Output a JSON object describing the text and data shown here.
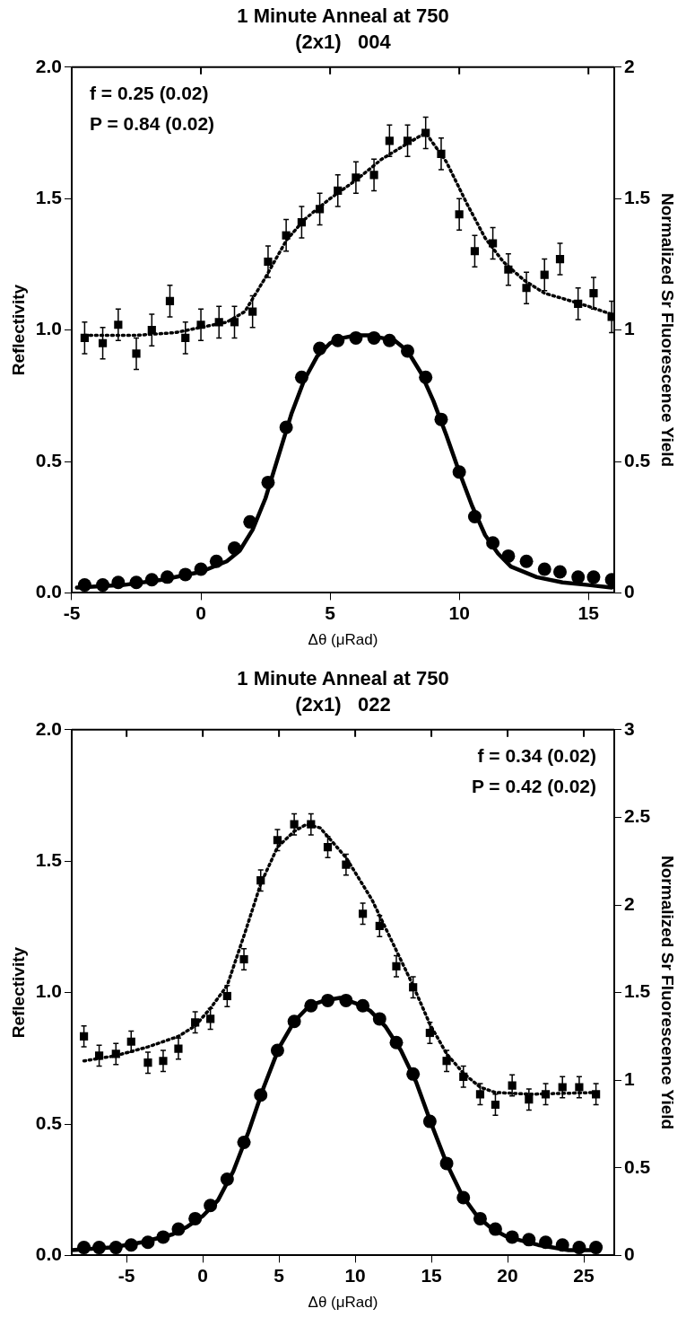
{
  "chart_data": [
    {
      "type": "scatter",
      "title": "1 Minute Anneal at 750",
      "subtitle": "(2x1)   004",
      "xlabel": "Δθ (μRad)",
      "ylabel": "Reflectivity",
      "y2label": "Normalized Sr Fluorescence Yield",
      "annotations": [
        "f = 0.25 (0.02)",
        "P = 0.84 (0.02)"
      ],
      "xlim": [
        -5,
        16
      ],
      "xticks": [
        -5,
        0,
        5,
        10,
        15
      ],
      "ylim": [
        0,
        2
      ],
      "yticks": [
        {
          "value": 0,
          "label": "0.0"
        },
        {
          "value": 0.5,
          "label": "0.5"
        },
        {
          "value": 1,
          "label": "1.0"
        },
        {
          "value": 1.5,
          "label": "1.5"
        },
        {
          "value": 2,
          "label": "2.0"
        }
      ],
      "y2lim": [
        0,
        2
      ],
      "y2ticks": [
        0,
        0.5,
        1,
        1.5,
        2
      ],
      "grid": false,
      "legend": false,
      "series": [
        {
          "marker": "circle",
          "color": "#000000",
          "x": [
            -4.5,
            -3.8,
            -3.2,
            -2.5,
            -1.9,
            -1.3,
            -0.6,
            0,
            0.6,
            1.3,
            1.9,
            2.6,
            3.3,
            3.9,
            4.6,
            5.3,
            6.0,
            6.7,
            7.3,
            8.0,
            8.7,
            9.3,
            10.0,
            10.6,
            11.3,
            11.9,
            12.6,
            13.3,
            13.9,
            14.6,
            15.2,
            15.9
          ],
          "values": [
            0.03,
            0.03,
            0.04,
            0.04,
            0.05,
            0.06,
            0.07,
            0.09,
            0.12,
            0.17,
            0.27,
            0.42,
            0.63,
            0.82,
            0.93,
            0.96,
            0.97,
            0.97,
            0.96,
            0.92,
            0.82,
            0.66,
            0.46,
            0.29,
            0.19,
            0.14,
            0.12,
            0.09,
            0.08,
            0.06,
            0.06,
            0.05
          ]
        },
        {
          "type": "line",
          "line_style": "solid",
          "color": "#000000",
          "x": [
            -4.8,
            -3,
            -1.5,
            0,
            1,
            1.5,
            2,
            2.5,
            3,
            3.5,
            4,
            4.5,
            5,
            5.5,
            6,
            6.5,
            7,
            7.5,
            8,
            8.5,
            9,
            9.5,
            10,
            10.5,
            11,
            11.5,
            12,
            13,
            14,
            15,
            15.9
          ],
          "values": [
            0.02,
            0.03,
            0.05,
            0.08,
            0.12,
            0.16,
            0.24,
            0.36,
            0.52,
            0.68,
            0.81,
            0.9,
            0.95,
            0.97,
            0.98,
            0.98,
            0.97,
            0.96,
            0.92,
            0.84,
            0.73,
            0.6,
            0.46,
            0.33,
            0.22,
            0.15,
            0.1,
            0.06,
            0.04,
            0.03,
            0.02
          ]
        },
        {
          "marker": "square",
          "axis": "y2",
          "color": "#000000",
          "x": [
            -4.5,
            -3.8,
            -3.2,
            -2.5,
            -1.9,
            -1.2,
            -0.6,
            0,
            0.7,
            1.3,
            2.0,
            2.6,
            3.3,
            3.9,
            4.6,
            5.3,
            6.0,
            6.7,
            7.3,
            8.0,
            8.7,
            9.3,
            10.0,
            10.6,
            11.3,
            11.9,
            12.6,
            13.3,
            13.9,
            14.6,
            15.2,
            15.9
          ],
          "values": [
            0.97,
            0.95,
            1.02,
            0.91,
            1.0,
            1.11,
            0.97,
            1.02,
            1.03,
            1.03,
            1.07,
            1.26,
            1.36,
            1.41,
            1.46,
            1.53,
            1.58,
            1.59,
            1.72,
            1.72,
            1.75,
            1.67,
            1.44,
            1.3,
            1.33,
            1.23,
            1.16,
            1.21,
            1.27,
            1.1,
            1.14,
            1.05
          ],
          "errors": [
            0.06,
            0.06,
            0.06,
            0.06,
            0.06,
            0.06,
            0.06,
            0.06,
            0.06,
            0.06,
            0.06,
            0.06,
            0.06,
            0.06,
            0.06,
            0.06,
            0.06,
            0.06,
            0.06,
            0.06,
            0.06,
            0.06,
            0.06,
            0.06,
            0.06,
            0.06,
            0.06,
            0.06,
            0.06,
            0.06,
            0.06,
            0.06
          ]
        },
        {
          "type": "line",
          "line_style": "dotted",
          "axis": "y2",
          "color": "#000000",
          "x": [
            -4.5,
            -2.5,
            -1,
            0,
            1,
            1.7,
            2.5,
            3.3,
            4,
            5,
            6,
            7,
            8,
            8.7,
            9.5,
            10.3,
            11,
            11.7,
            12.5,
            13.3,
            14,
            15,
            15.9
          ],
          "values": [
            0.98,
            0.98,
            0.99,
            1.01,
            1.03,
            1.07,
            1.2,
            1.34,
            1.42,
            1.5,
            1.57,
            1.65,
            1.71,
            1.75,
            1.64,
            1.48,
            1.35,
            1.26,
            1.19,
            1.14,
            1.12,
            1.09,
            1.06
          ]
        }
      ]
    },
    {
      "type": "scatter",
      "title": "1 Minute Anneal at 750",
      "subtitle": "(2x1)   022",
      "xlabel": "Δθ (μRad)",
      "ylabel": "Reflectivity",
      "y2label": "Normalized Sr Fluorescence Yield",
      "annotations": [
        "f = 0.34 (0.02)",
        "P = 0.42 (0.02)"
      ],
      "xlim": [
        -8.6,
        27
      ],
      "xticks": [
        -5,
        0,
        5,
        10,
        15,
        20,
        25
      ],
      "ylim": [
        0,
        2
      ],
      "yticks": [
        {
          "value": 0,
          "label": "0.0"
        },
        {
          "value": 0.5,
          "label": "0.5"
        },
        {
          "value": 1,
          "label": "1.0"
        },
        {
          "value": 1.5,
          "label": "1.5"
        },
        {
          "value": 2,
          "label": "2.0"
        }
      ],
      "y2lim": [
        0,
        3
      ],
      "y2ticks": [
        0,
        0.5,
        1,
        1.5,
        2,
        2.5,
        3
      ],
      "grid": false,
      "legend": false,
      "series": [
        {
          "marker": "circle",
          "color": "#000000",
          "x": [
            -7.8,
            -6.8,
            -5.7,
            -4.7,
            -3.6,
            -2.6,
            -1.6,
            -0.5,
            0.5,
            1.6,
            2.7,
            3.8,
            4.9,
            6.0,
            7.1,
            8.2,
            9.4,
            10.5,
            11.6,
            12.7,
            13.8,
            14.9,
            16.0,
            17.1,
            18.2,
            19.2,
            20.3,
            21.4,
            22.5,
            23.6,
            24.7,
            25.8
          ],
          "values": [
            0.03,
            0.03,
            0.03,
            0.04,
            0.05,
            0.07,
            0.1,
            0.14,
            0.19,
            0.29,
            0.43,
            0.61,
            0.78,
            0.89,
            0.95,
            0.97,
            0.97,
            0.95,
            0.9,
            0.81,
            0.69,
            0.51,
            0.35,
            0.22,
            0.14,
            0.1,
            0.07,
            0.06,
            0.05,
            0.04,
            0.03,
            0.03
          ]
        },
        {
          "type": "line",
          "line_style": "solid",
          "color": "#000000",
          "x": [
            -8.6,
            -6,
            -4,
            -2,
            -1,
            0,
            1,
            2,
            3,
            4,
            5,
            6,
            7,
            8,
            9,
            10,
            11,
            12,
            13,
            14,
            15,
            16,
            17,
            18,
            19,
            20,
            22,
            24,
            26
          ],
          "values": [
            0.02,
            0.03,
            0.05,
            0.08,
            0.11,
            0.15,
            0.21,
            0.32,
            0.47,
            0.64,
            0.79,
            0.89,
            0.95,
            0.97,
            0.98,
            0.96,
            0.93,
            0.87,
            0.78,
            0.66,
            0.5,
            0.35,
            0.23,
            0.15,
            0.1,
            0.07,
            0.04,
            0.02,
            0.02
          ]
        },
        {
          "marker": "square",
          "axis": "y2",
          "color": "#000000",
          "x": [
            -7.8,
            -6.8,
            -5.7,
            -4.7,
            -3.6,
            -2.6,
            -1.6,
            -0.5,
            0.5,
            1.6,
            2.7,
            3.8,
            4.9,
            6.0,
            7.1,
            8.2,
            9.4,
            10.5,
            11.6,
            12.7,
            13.8,
            14.9,
            16.0,
            17.1,
            18.2,
            19.2,
            20.3,
            21.4,
            22.5,
            23.6,
            24.7,
            25.8
          ],
          "values": [
            1.25,
            1.14,
            1.15,
            1.22,
            1.1,
            1.11,
            1.18,
            1.33,
            1.35,
            1.48,
            1.69,
            2.14,
            2.37,
            2.46,
            2.46,
            2.33,
            2.23,
            1.95,
            1.88,
            1.65,
            1.53,
            1.27,
            1.11,
            1.02,
            0.92,
            0.86,
            0.97,
            0.89,
            0.92,
            0.96,
            0.96,
            0.92
          ],
          "errors": [
            0.06,
            0.06,
            0.06,
            0.06,
            0.06,
            0.06,
            0.06,
            0.06,
            0.06,
            0.06,
            0.06,
            0.06,
            0.06,
            0.06,
            0.06,
            0.06,
            0.06,
            0.06,
            0.06,
            0.06,
            0.06,
            0.06,
            0.06,
            0.06,
            0.06,
            0.06,
            0.06,
            0.06,
            0.06,
            0.06,
            0.06,
            0.06
          ]
        },
        {
          "type": "line",
          "line_style": "dotted",
          "axis": "y2",
          "color": "#000000",
          "x": [
            -7.8,
            -5.7,
            -3.6,
            -1.6,
            -0.5,
            0.5,
            1.6,
            2.8,
            3.8,
            4.9,
            6.0,
            6.8,
            7.7,
            9.4,
            11.1,
            12.7,
            13.8,
            14.9,
            16.0,
            17.1,
            18.2,
            19.2,
            21.5,
            25.8
          ],
          "values": [
            1.11,
            1.14,
            1.19,
            1.25,
            1.31,
            1.41,
            1.54,
            1.85,
            2.12,
            2.33,
            2.42,
            2.46,
            2.44,
            2.27,
            2.03,
            1.74,
            1.54,
            1.32,
            1.15,
            1.04,
            0.96,
            0.93,
            0.92,
            0.93
          ]
        }
      ]
    }
  ]
}
